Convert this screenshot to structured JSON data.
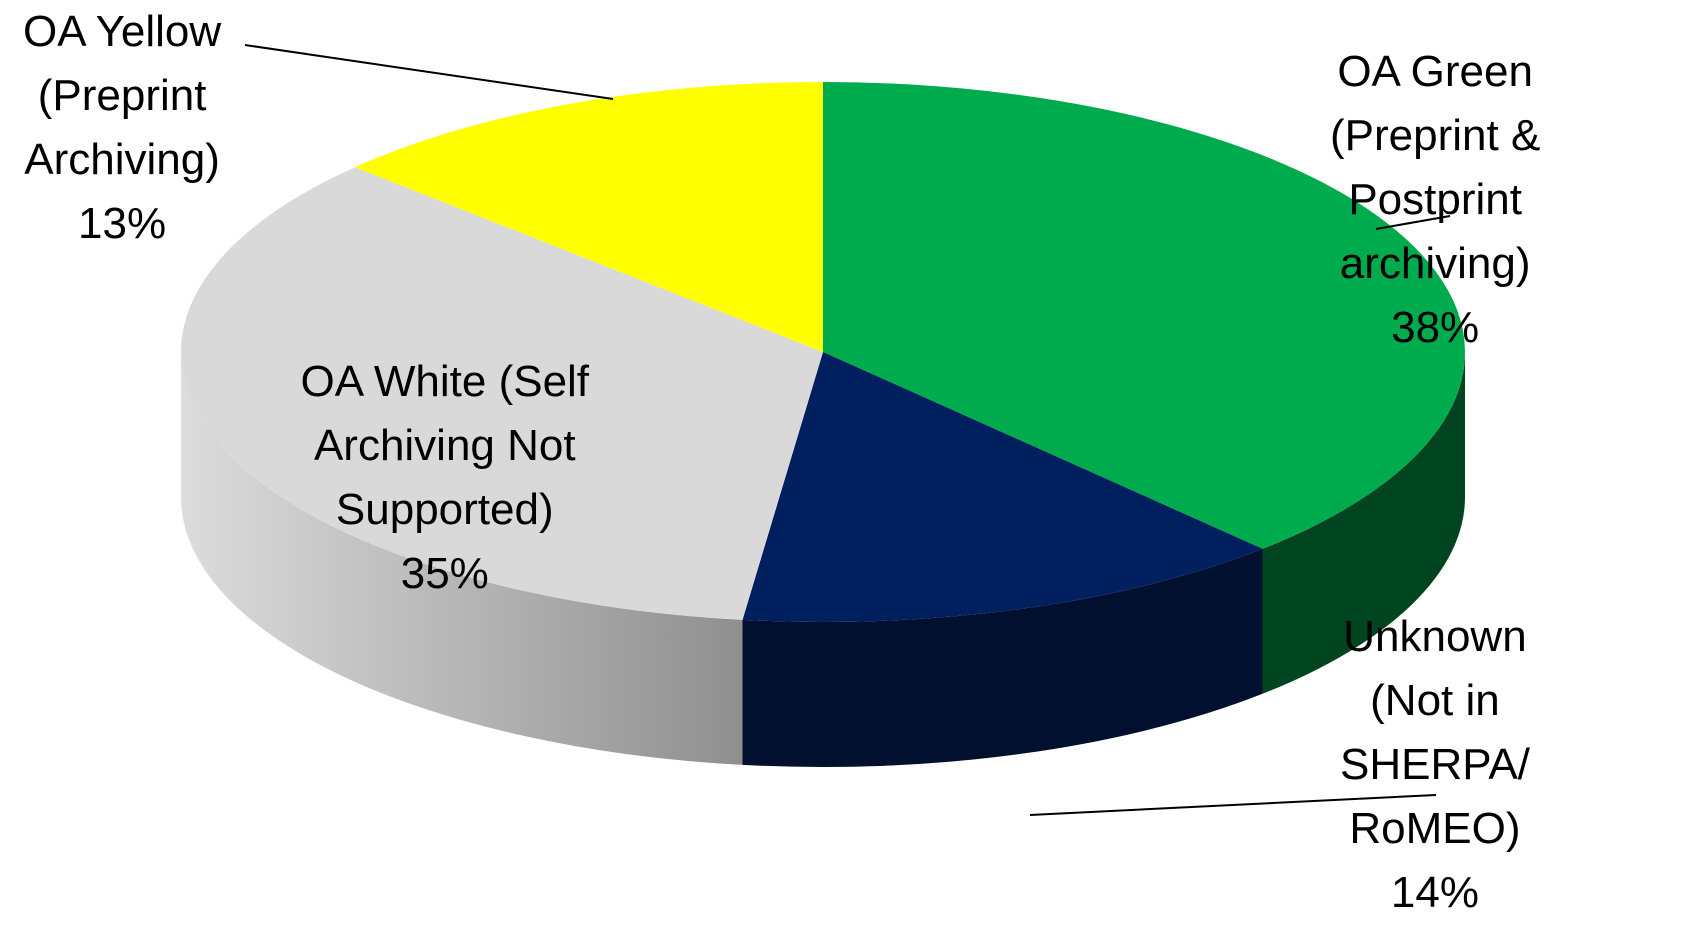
{
  "chart_data": {
    "type": "pie",
    "title": "",
    "style": "3d",
    "slices": [
      {
        "name": "OA Green",
        "label_lines": [
          "OA Green",
          "(Preprint &",
          "Postprint",
          "archiving)"
        ],
        "percent_label": "38%",
        "value": 38,
        "color": "#00AB4E",
        "side_color": "#004420"
      },
      {
        "name": "Unknown",
        "label_lines": [
          "Unknown",
          "(Not in",
          "SHERPA/",
          "RoMEO)"
        ],
        "percent_label": "14%",
        "value": 14,
        "color": "#001F5E",
        "side_color": "#00102E"
      },
      {
        "name": "OA White",
        "label_lines": [
          "OA White (Self",
          "Archiving Not",
          "Supported)"
        ],
        "percent_label": "35%",
        "value": 35,
        "color": "#D9D9D9",
        "side_color": "#A8A8A8"
      },
      {
        "name": "OA Yellow",
        "label_lines": [
          "OA Yellow",
          "(Preprint",
          "Archiving)"
        ],
        "percent_label": "13%",
        "value": 13,
        "color": "#FFFF00",
        "side_color": "#B3B300"
      }
    ]
  }
}
